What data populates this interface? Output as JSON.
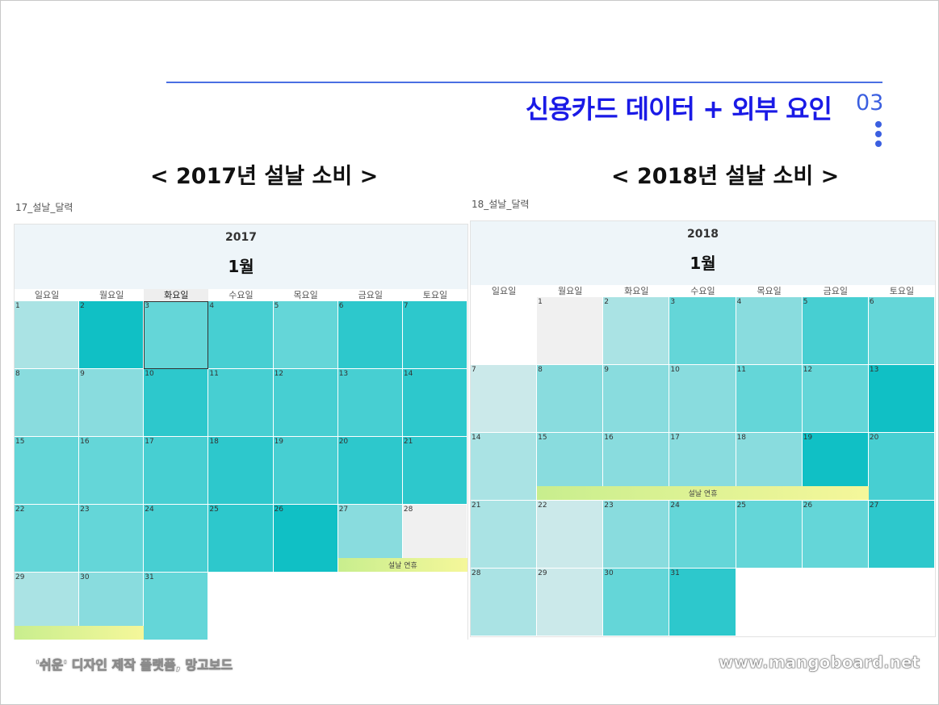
{
  "header": {
    "title": "신용카드 데이터 + 외부 요인",
    "page_number": "03",
    "accent_color": "#1a1ae6"
  },
  "calendars": [
    {
      "heading": "< 2017년 설날 소비 >",
      "caption": "17_설날_달력",
      "year": "2017",
      "month": "1월",
      "weekdays": [
        "일요일",
        "월요일",
        "화요일",
        "수요일",
        "목요일",
        "금요일",
        "토요일"
      ],
      "selected_weekday_index": 2,
      "first_weekday_index": 0,
      "days_in_month": 31,
      "shade_levels": [
        2,
        7,
        4,
        5,
        4,
        6,
        6,
        3,
        3,
        6,
        5,
        5,
        5,
        6,
        4,
        4,
        5,
        6,
        5,
        6,
        6,
        4,
        4,
        5,
        6,
        7,
        3,
        0,
        2,
        3,
        4
      ],
      "gray_days": [
        28
      ],
      "selected_day": 3,
      "holiday_label": "설날 연휴",
      "holiday_days": [
        27,
        28,
        29,
        30
      ]
    },
    {
      "heading": "< 2018년 설날 소비 >",
      "caption": "18_설날_달력",
      "year": "2018",
      "month": "1월",
      "weekdays": [
        "일요일",
        "월요일",
        "화요일",
        "수요일",
        "목요일",
        "금요일",
        "토요일"
      ],
      "selected_weekday_index": -1,
      "first_weekday_index": 1,
      "days_in_month": 31,
      "shade_levels": [
        0,
        2,
        4,
        3,
        5,
        4,
        1,
        3,
        3,
        3,
        4,
        4,
        7,
        2,
        3,
        3,
        3,
        3,
        7,
        5,
        2,
        1,
        3,
        4,
        4,
        4,
        6,
        2,
        1,
        4,
        6
      ],
      "gray_days": [
        1
      ],
      "selected_day": -1,
      "holiday_label": "설날 연휴",
      "holiday_days": [
        15,
        16,
        17,
        18,
        19
      ]
    }
  ],
  "footer": {
    "left_text": "'쉬운' 디자인 제작 플랫폼, 망고보드",
    "right_text": "www.mangoboard.net"
  }
}
